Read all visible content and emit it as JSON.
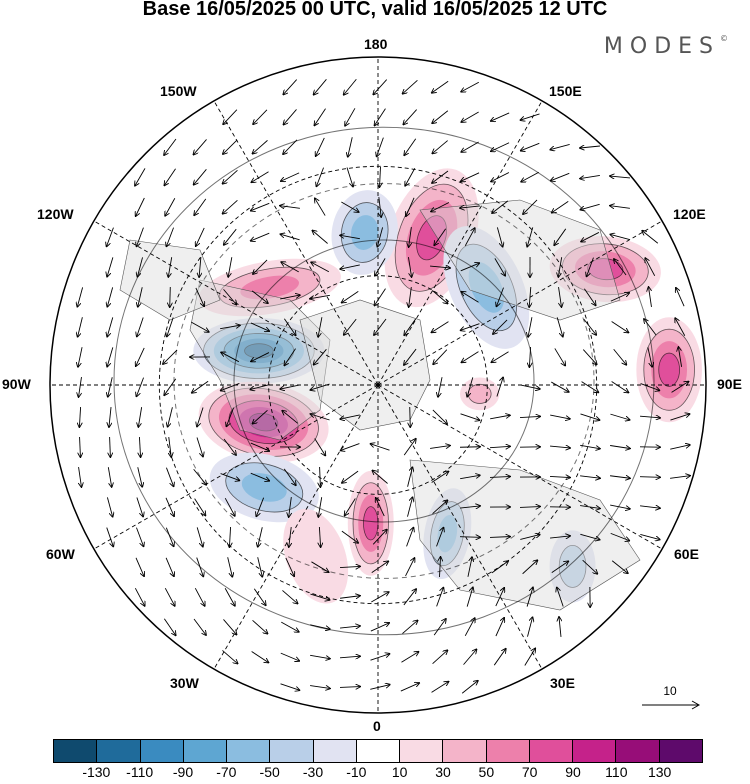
{
  "title": "Base 16/05/2025 00 UTC, valid 16/05/2025 12 UTC",
  "brand": "MODES",
  "brand_mark": "©",
  "longitude_labels": {
    "n180": "180",
    "e150": "150E",
    "e120": "120E",
    "e90": "90E",
    "e60": "60E",
    "e30": "30E",
    "s0": "0",
    "w30": "30W",
    "w60": "60W",
    "w90": "90W",
    "w120": "120W",
    "w150": "150W"
  },
  "reference_vector": {
    "label": "10"
  },
  "colorbar": {
    "colors": [
      "#0f4a6e",
      "#1f6b9b",
      "#3a8bc0",
      "#5ea6d2",
      "#8bbde0",
      "#b9cfe8",
      "#e1e3f2",
      "#ffffff",
      "#f9dbe4",
      "#f4b4c9",
      "#ed80ab",
      "#e04f9b",
      "#c5228a",
      "#970d78",
      "#5e0a6b"
    ],
    "tick_labels": [
      "-130",
      "-110",
      "-90",
      "-70",
      "-50",
      "-30",
      "-10",
      "10",
      "30",
      "50",
      "70",
      "90",
      "110",
      "130"
    ]
  },
  "anomaly_centers": [
    {
      "lon": 160,
      "lat": 47,
      "value": 85,
      "rx": 0.13,
      "ry": 0.22,
      "rot": 20
    },
    {
      "lon": 185,
      "lat": 48,
      "value": -75,
      "rx": 0.1,
      "ry": 0.13,
      "rot": 10
    },
    {
      "lon": 132,
      "lat": 50,
      "value": -65,
      "rx": 0.11,
      "ry": 0.2,
      "rot": -25
    },
    {
      "lon": 117,
      "lat": 20,
      "value": 95,
      "rx": 0.17,
      "ry": 0.1,
      "rot": 5
    },
    {
      "lon": 228,
      "lat": 50,
      "value": 70,
      "rx": 0.22,
      "ry": 0.08,
      "rot": -10
    },
    {
      "lon": 254,
      "lat": 56,
      "value": -120,
      "rx": 0.2,
      "ry": 0.1,
      "rot": 0
    },
    {
      "lon": 288,
      "lat": 57,
      "value": 135,
      "rx": 0.2,
      "ry": 0.12,
      "rot": 10
    },
    {
      "lon": 312,
      "lat": 48,
      "value": -75,
      "rx": 0.17,
      "ry": 0.1,
      "rot": 15
    },
    {
      "lon": 357,
      "lat": 52,
      "value": 95,
      "rx": 0.07,
      "ry": 0.16,
      "rot": 0
    },
    {
      "lon": 25,
      "lat": 45,
      "value": -65,
      "rx": 0.07,
      "ry": 0.14,
      "rot": 10
    },
    {
      "lon": 47,
      "lat": 17,
      "value": -45,
      "rx": 0.07,
      "ry": 0.11,
      "rot": 0
    },
    {
      "lon": 93,
      "lat": 10,
      "value": 80,
      "rx": 0.1,
      "ry": 0.16,
      "rot": 0
    },
    {
      "lon": 85,
      "lat": 62,
      "value": 45,
      "rx": 0.06,
      "ry": 0.05,
      "rot": 0
    },
    {
      "lon": 340,
      "lat": 40,
      "value": 35,
      "rx": 0.09,
      "ry": 0.15,
      "rot": -20
    }
  ]
}
